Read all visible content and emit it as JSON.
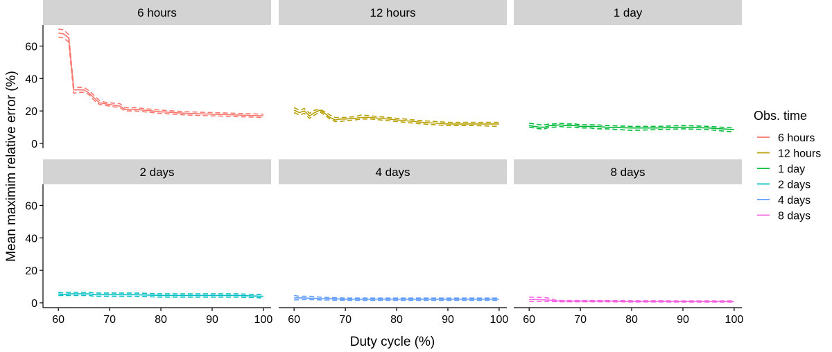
{
  "chart_data": {
    "type": "line",
    "layout": "facet-grid-2x3",
    "xlabel": "Duty cycle (%)",
    "ylabel": "Mean maximim relative error (%)",
    "xlim": [
      57,
      101.5
    ],
    "ylim": [
      -3,
      73
    ],
    "x_ticks": [
      60,
      70,
      80,
      90,
      100
    ],
    "y_ticks": [
      0,
      20,
      40,
      60
    ],
    "legend": {
      "title": "Obs. time",
      "position": "right",
      "entries": [
        "6 hours",
        "12 hours",
        "1 day",
        "2 days",
        "4 days",
        "8 days"
      ]
    },
    "colors": [
      "#F8766D",
      "#B79F00",
      "#00BA38",
      "#00BFC4",
      "#619CFF",
      "#F564E3"
    ],
    "line_styles": {
      "mean": "solid",
      "upper_bound": "dashed",
      "lower_bound": "dashed"
    },
    "x": [
      60,
      61,
      62,
      63,
      64,
      65,
      66,
      67,
      68,
      69,
      70,
      72,
      73,
      75,
      80,
      85,
      90,
      95,
      100
    ],
    "panels": [
      {
        "label": "6 hours",
        "mean": [
          68,
          67.5,
          65,
          33,
          33,
          33,
          31,
          28,
          25,
          24.5,
          24,
          23,
          21,
          21,
          19.5,
          18.5,
          18,
          17.5,
          17
        ],
        "upper": [
          70.5,
          70,
          67,
          34.5,
          34.5,
          34.5,
          32.5,
          29.5,
          26.5,
          25.5,
          25,
          24.5,
          22,
          22,
          20.5,
          19.5,
          19,
          18.5,
          18
        ],
        "lower": [
          65.5,
          65,
          62.5,
          31,
          31.5,
          31.5,
          30,
          26.5,
          24,
          23.5,
          23,
          22,
          20,
          20,
          18.5,
          17.5,
          17,
          16.5,
          16
        ]
      },
      {
        "label": "12 hours",
        "mean": [
          20.5,
          19,
          20,
          17,
          19,
          20.5,
          18.5,
          16,
          14.5,
          15,
          15,
          15.5,
          16,
          16,
          14.5,
          13,
          12,
          12,
          12
        ],
        "upper": [
          22,
          20.5,
          21.5,
          18.5,
          20.5,
          21,
          19.5,
          17.5,
          16,
          16,
          16,
          16.5,
          17.5,
          17,
          15.5,
          14,
          13,
          13,
          13
        ],
        "lower": [
          19,
          17.5,
          18.5,
          15.5,
          17.5,
          19.5,
          17.5,
          15,
          13.5,
          13.5,
          14,
          14.5,
          15,
          15,
          13.5,
          12,
          11,
          11,
          10.5
        ]
      },
      {
        "label": "1 day",
        "mean": [
          11,
          10.5,
          10,
          10,
          11,
          11,
          11.5,
          11,
          11,
          11,
          10.5,
          10.5,
          10.5,
          10,
          9.5,
          9.5,
          10,
          9.5,
          8.5
        ],
        "upper": [
          12.5,
          12,
          11.5,
          11.5,
          12,
          12,
          12.5,
          12,
          12,
          12,
          11.5,
          11.5,
          11.5,
          11,
          10.5,
          10.5,
          11,
          10.5,
          9.5
        ],
        "lower": [
          10,
          9.5,
          9,
          9,
          10,
          10,
          10.5,
          10,
          10,
          10,
          9.5,
          9.5,
          9,
          9,
          8,
          8.5,
          9,
          8.5,
          7
        ]
      },
      {
        "label": "2 days",
        "mean": [
          5.5,
          5,
          5.5,
          5.5,
          5.5,
          5.5,
          5.5,
          5,
          5,
          5,
          5,
          5,
          5,
          5,
          4.5,
          4.5,
          4.5,
          4.5,
          4
        ],
        "upper": [
          6.5,
          6,
          6.5,
          6.5,
          6.5,
          6.5,
          6.5,
          6,
          6,
          6,
          6,
          6,
          6,
          6,
          5.5,
          5.5,
          5.5,
          5.5,
          5
        ],
        "lower": [
          4.5,
          4.5,
          4.5,
          4.5,
          4.5,
          4.5,
          4.5,
          4,
          4,
          4,
          4,
          4,
          4,
          4,
          3.5,
          3.5,
          3.5,
          3.5,
          3
        ]
      },
      {
        "label": "4 days",
        "mean": [
          3,
          3,
          3,
          2.8,
          2.8,
          2.6,
          2.5,
          2.5,
          2.4,
          2.3,
          2.2,
          2.2,
          2.2,
          2.2,
          2.2,
          2.2,
          2.2,
          2.2,
          2.2
        ],
        "upper": [
          4.5,
          4,
          4,
          4,
          3.8,
          3.5,
          3.3,
          3.2,
          3.1,
          3,
          2.9,
          2.9,
          2.9,
          2.9,
          2.9,
          2.9,
          2.9,
          2.9,
          2.9
        ],
        "lower": [
          1.8,
          1.9,
          2,
          1.9,
          1.9,
          1.8,
          1.7,
          1.7,
          1.6,
          1.6,
          1.5,
          1.5,
          1.5,
          1.5,
          1.5,
          1.5,
          1.5,
          1.5,
          1.5
        ]
      },
      {
        "label": "8 days",
        "mean": [
          2,
          2,
          1.9,
          1.8,
          1.6,
          1.2,
          1.1,
          1,
          1,
          1,
          1,
          1,
          1,
          1,
          0.9,
          0.9,
          0.8,
          0.8,
          0.8
        ],
        "upper": [
          3.5,
          3.4,
          3.3,
          3.2,
          2.8,
          1.7,
          1.5,
          1.4,
          1.4,
          1.4,
          1.4,
          1.4,
          1.4,
          1.4,
          1.3,
          1.3,
          1.2,
          1.2,
          1.2
        ],
        "lower": [
          0.8,
          0.8,
          0.8,
          0.8,
          0.7,
          0.7,
          0.6,
          0.6,
          0.6,
          0.6,
          0.6,
          0.6,
          0.6,
          0.6,
          0.5,
          0.5,
          0.4,
          0.4,
          0.4
        ]
      }
    ]
  }
}
